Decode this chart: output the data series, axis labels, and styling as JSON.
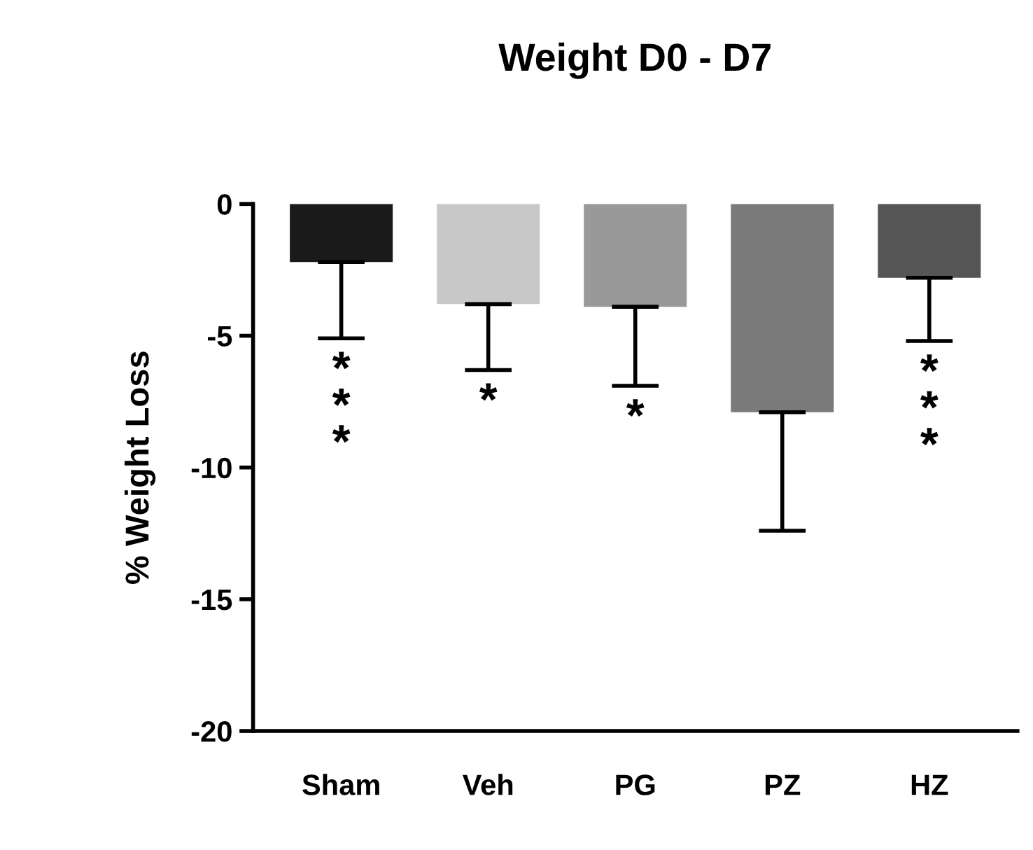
{
  "chart_data": {
    "type": "bar",
    "title": "Weight D0 - D7",
    "ylabel": "% Weight Loss",
    "categories": [
      "Sham",
      "Veh",
      "PG",
      "PZ",
      "HZ"
    ],
    "values": [
      -2.2,
      -3.8,
      -3.9,
      -7.9,
      -2.8
    ],
    "errors": [
      [
        -5.1,
        -2.2
      ],
      [
        -6.3,
        -3.8
      ],
      [
        -6.9,
        -3.9
      ],
      [
        -12.4,
        -7.9
      ],
      [
        -5.2,
        -2.8
      ]
    ],
    "colors": [
      "#1a1a1a",
      "#c8c8c8",
      "#999999",
      "#7a7a7a",
      "#555555"
    ],
    "ylim": [
      -20,
      0
    ],
    "yticks": [
      -20,
      -15,
      -10,
      -5,
      0
    ],
    "grid": false,
    "annotations": [
      "*\n*\n*",
      "*",
      "*",
      "*\n*\n*"
    ]
  }
}
